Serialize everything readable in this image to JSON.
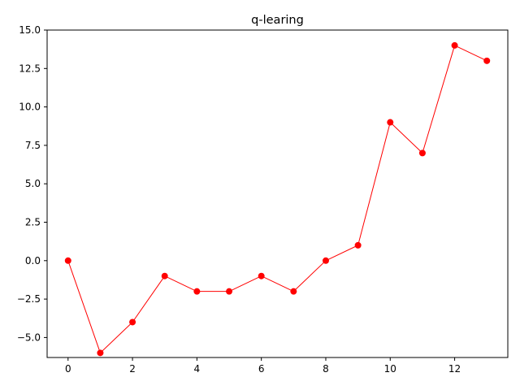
{
  "chart_data": {
    "type": "line",
    "title": "q-learing",
    "xlabel": "",
    "ylabel": "",
    "xlim": [
      -0.65,
      13.65
    ],
    "ylim": [
      -6.3,
      15.0
    ],
    "xticks": [
      0,
      2,
      4,
      6,
      8,
      10,
      12
    ],
    "yticks": [
      -5.0,
      -2.5,
      0.0,
      2.5,
      5.0,
      7.5,
      10.0,
      12.5,
      15.0
    ],
    "xtick_labels": [
      "0",
      "2",
      "4",
      "6",
      "8",
      "10",
      "12"
    ],
    "ytick_labels": [
      "−5.0",
      "−2.5",
      "0.0",
      "2.5",
      "5.0",
      "7.5",
      "10.0",
      "12.5",
      "15.0"
    ],
    "grid": false,
    "legend": "none",
    "series": [
      {
        "color": "#ff0000",
        "marker": "circle",
        "x": [
          0,
          1,
          2,
          3,
          4,
          5,
          6,
          7,
          8,
          9,
          10,
          11,
          12,
          13
        ],
        "y": [
          0,
          -6,
          -4,
          -1,
          -2,
          -2,
          -1,
          -2,
          0,
          1,
          9,
          7,
          14,
          13
        ]
      }
    ]
  }
}
